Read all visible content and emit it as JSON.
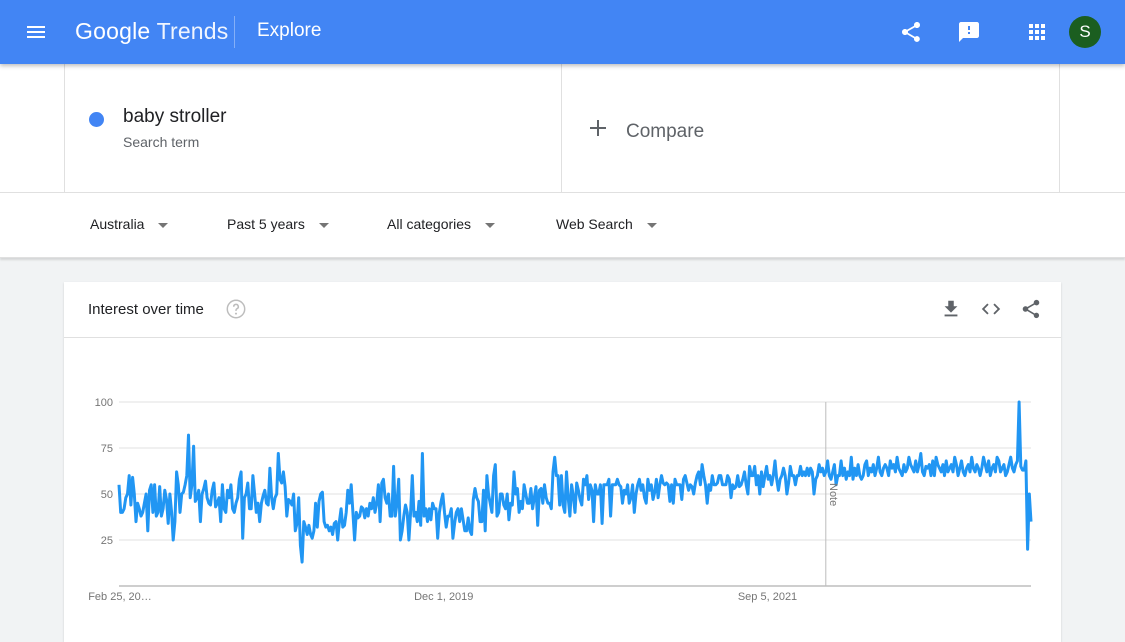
{
  "header": {
    "logo_google": "Google",
    "logo_trends": "Trends",
    "title": "Explore",
    "icons": [
      "menu-icon",
      "share-icon",
      "feedback-icon",
      "apps-icon"
    ],
    "avatar_letter": "S",
    "color": "#4285f4"
  },
  "search": {
    "term": "baby stroller",
    "term_type": "Search term",
    "term_color": "#4285f4",
    "compare_label": "Compare"
  },
  "filters": {
    "region": "Australia",
    "time": "Past 5 years",
    "category": "All categories",
    "property": "Web Search"
  },
  "card": {
    "title": "Interest over time",
    "icons": [
      "help-icon",
      "download-icon",
      "embed-icon",
      "share-icon"
    ]
  },
  "chart_data": {
    "type": "line",
    "title": "Interest over time",
    "ylim": [
      0,
      100
    ],
    "yticks": [
      25,
      50,
      75,
      100
    ],
    "x_tick_labels": [
      "Feb 25, 20…",
      "Dec 1, 2019",
      "Sep 5, 2021"
    ],
    "annotation": "Note",
    "annotation_position": "Jan 2022",
    "grid": true,
    "series": [
      {
        "color": "#2196f3",
        "values": [
          55,
          40,
          40,
          42,
          48,
          50,
          60,
          44,
          59,
          50,
          35,
          45,
          42,
          38,
          40,
          45,
          50,
          30,
          52,
          55,
          40,
          55,
          38,
          40,
          54,
          38,
          42,
          52,
          47,
          34,
          50,
          40,
          25,
          35,
          62,
          55,
          40,
          50,
          51,
          55,
          60,
          82,
          48,
          55,
          76,
          46,
          48,
          52,
          35,
          50,
          53,
          57,
          48,
          45,
          44,
          52,
          56,
          43,
          45,
          48,
          35,
          55,
          42,
          40,
          52,
          48,
          55,
          42,
          40,
          45,
          48,
          58,
          62,
          26,
          48,
          50,
          56,
          42,
          42,
          60,
          50,
          40,
          45,
          35,
          45,
          49,
          52,
          45,
          44,
          64,
          48,
          42,
          48,
          50,
          72,
          58,
          56,
          62,
          54,
          38,
          47,
          46,
          44,
          50,
          30,
          34,
          48,
          22,
          13,
          35,
          32,
          28,
          33,
          28,
          26,
          30,
          45,
          32,
          46,
          50,
          51,
          35,
          32,
          33,
          30,
          32,
          28,
          34,
          35,
          25,
          35,
          42,
          32,
          33,
          40,
          52,
          45,
          55,
          40,
          25,
          40,
          37,
          38,
          43,
          42,
          37,
          42,
          38,
          45,
          42,
          48,
          40,
          45,
          55,
          35,
          56,
          58,
          48,
          45,
          50,
          38,
          38,
          65,
          38,
          45,
          58,
          25,
          30,
          38,
          44,
          40,
          25,
          40,
          60,
          38,
          40,
          35,
          46,
          33,
          72,
          38,
          42,
          35,
          42,
          36,
          45,
          42,
          42,
          26,
          40,
          46,
          50,
          40,
          32,
          38,
          38,
          42,
          26,
          34,
          40,
          42,
          35,
          42,
          36,
          30,
          30,
          37,
          30,
          28,
          47,
          53,
          48,
          46,
          35,
          35,
          52,
          30,
          60,
          50,
          45,
          40,
          60,
          66,
          38,
          40,
          50,
          50,
          44,
          42,
          50,
          36,
          45,
          44,
          62,
          50,
          53,
          40,
          46,
          42,
          55,
          50,
          45,
          45,
          53,
          42,
          48,
          54,
          33,
          52,
          53,
          45,
          55,
          48,
          45,
          45,
          42,
          62,
          70,
          60,
          60,
          44,
          60,
          44,
          40,
          62,
          48,
          38,
          55,
          49,
          40,
          56,
          52,
          47,
          44,
          58,
          55,
          60,
          47,
          55,
          52,
          35,
          55,
          50,
          50,
          55,
          34,
          55,
          55,
          55,
          58,
          38,
          55,
          55,
          55,
          58,
          55,
          54,
          45,
          52,
          50,
          55,
          45,
          48,
          55,
          40,
          50,
          55,
          58,
          52,
          55,
          48,
          45,
          58,
          52,
          55,
          47,
          51,
          58,
          48,
          55,
          60,
          56,
          55,
          56,
          55,
          46,
          55,
          45,
          58,
          55,
          55,
          55,
          47,
          58,
          60,
          56,
          52,
          55,
          54,
          50,
          56,
          60,
          62,
          55,
          66,
          60,
          55,
          45,
          55,
          52,
          60,
          55,
          55,
          56,
          60,
          60,
          55,
          55,
          55,
          60,
          58,
          48,
          55,
          53,
          54,
          60,
          54,
          55,
          58,
          62,
          55,
          50,
          65,
          60,
          60,
          65,
          55,
          60,
          50,
          62,
          54,
          60,
          65,
          58,
          60,
          55,
          60,
          68,
          58,
          52,
          58,
          60,
          64,
          60,
          50,
          56,
          65,
          60,
          60,
          55,
          60,
          60,
          65,
          60,
          62,
          60,
          64,
          60,
          64,
          62,
          50,
          58,
          60,
          66,
          62,
          64,
          60,
          62,
          68,
          60,
          58,
          62,
          66,
          55,
          60,
          60,
          68,
          60,
          64,
          58,
          62,
          60,
          70,
          58,
          64,
          60,
          66,
          60,
          58,
          60,
          66,
          68,
          60,
          64,
          62,
          66,
          60,
          64,
          70,
          62,
          60,
          64,
          66,
          64,
          60,
          68,
          64,
          66,
          62,
          70,
          64,
          62,
          60,
          66,
          62,
          64,
          70,
          66,
          64,
          62,
          68,
          62,
          66,
          72,
          62,
          60,
          65,
          64,
          66,
          60,
          68,
          60,
          70,
          66,
          64,
          62,
          66,
          60,
          68,
          62,
          64,
          66,
          62,
          70,
          66,
          60,
          64,
          68,
          62,
          60,
          64,
          66,
          62,
          70,
          64,
          62,
          66,
          64,
          60,
          64,
          70,
          66,
          62,
          68,
          60,
          64,
          66,
          62,
          70,
          68,
          62,
          64,
          66,
          60,
          62,
          66,
          70,
          64,
          62,
          66,
          68,
          100,
          65,
          63,
          63,
          68,
          20,
          50,
          35
        ]
      }
    ]
  }
}
